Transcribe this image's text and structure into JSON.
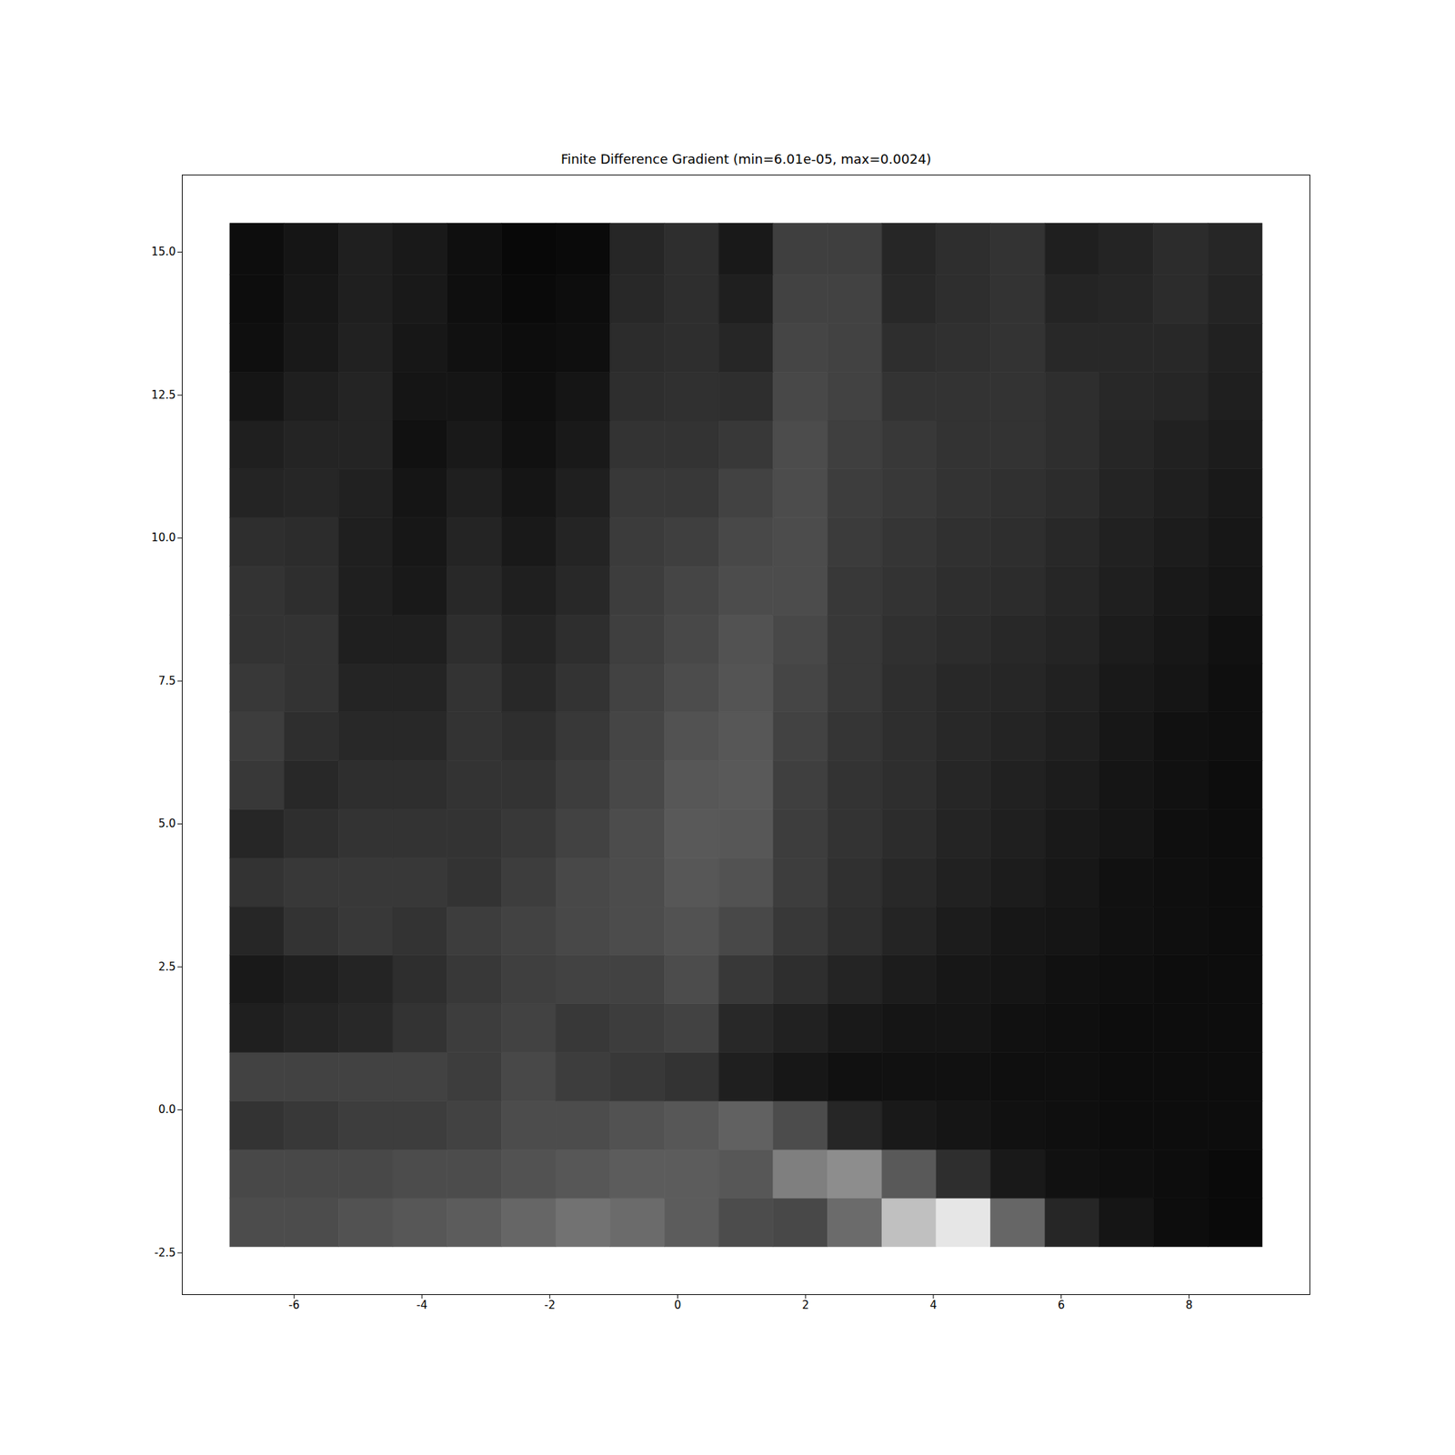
{
  "chart_data": {
    "type": "heatmap",
    "title": "Finite Difference Gradient (min=6.01e-05, max=0.0024)",
    "xlim": [
      -7.75,
      9.89
    ],
    "ylim": [
      -3.23,
      16.35
    ],
    "xticks": [
      -6,
      -4,
      -2,
      0,
      2,
      4,
      6,
      8
    ],
    "yticks": [
      -2.5,
      {
        "value": 0,
        "label": "0.0"
      },
      2.5,
      {
        "value": 5,
        "label": "5.0"
      },
      7.5,
      {
        "value": 10,
        "label": "10.0"
      },
      12.5,
      {
        "value": 15,
        "label": "15.0"
      }
    ],
    "zlim": [
      6.01e-05,
      0.0024
    ],
    "x_bins": [
      -7.0,
      -6.15,
      -5.3,
      -4.45,
      -3.6,
      -2.75,
      -1.9,
      -1.05,
      -0.2,
      0.65,
      1.5,
      2.35,
      3.2,
      4.05,
      4.9,
      5.75,
      6.6,
      7.45,
      8.3,
      9.15
    ],
    "y_bins": [
      -2.4,
      -1.55,
      -0.7,
      0.15,
      1.0,
      1.85,
      2.7,
      3.55,
      4.4,
      5.25,
      6.1,
      6.95,
      7.8,
      8.65,
      9.5,
      10.35,
      11.2,
      12.05,
      12.9,
      13.75,
      14.6,
      15.5
    ],
    "cells": [
      [
        0.00076,
        0.00076,
        0.00081,
        0.00086,
        0.0009,
        0.001,
        0.00111,
        0.00104,
        0.0009,
        0.00076,
        0.00072,
        0.00104,
        0.00182,
        0.00217,
        0.001,
        0.00041,
        0.00025,
        0.00018,
        0.00015
      ],
      [
        0.00072,
        0.00072,
        0.00072,
        0.00076,
        0.00076,
        0.00081,
        0.00086,
        0.0009,
        0.0009,
        0.00086,
        0.00123,
        0.00135,
        0.00088,
        0.00048,
        0.00029,
        0.00022,
        0.0002,
        0.00018,
        0.00015
      ],
      [
        0.00053,
        0.00057,
        0.00062,
        0.00062,
        0.00067,
        0.00076,
        0.00076,
        0.00081,
        0.00086,
        0.00095,
        0.00076,
        0.00041,
        0.00029,
        0.00025,
        0.00022,
        0.0002,
        0.00018,
        0.00018,
        0.00018
      ],
      [
        0.00067,
        0.00067,
        0.00067,
        0.00067,
        0.00062,
        0.00072,
        0.00062,
        0.00057,
        0.00053,
        0.00034,
        0.00027,
        0.00022,
        0.00022,
        0.00022,
        0.0002,
        0.0002,
        0.00018,
        0.00018,
        0.00018
      ],
      [
        0.00034,
        0.00039,
        0.00043,
        0.00053,
        0.00062,
        0.00067,
        0.00057,
        0.00062,
        0.00067,
        0.00043,
        0.00036,
        0.00029,
        0.00025,
        0.00025,
        0.00022,
        0.0002,
        0.00018,
        0.00018,
        0.00018
      ],
      [
        0.00029,
        0.00034,
        0.00039,
        0.00048,
        0.00057,
        0.00064,
        0.00067,
        0.00067,
        0.00076,
        0.00057,
        0.00048,
        0.00039,
        0.00032,
        0.00027,
        0.00025,
        0.00022,
        0.0002,
        0.00018,
        0.00018
      ],
      [
        0.00041,
        0.00053,
        0.00057,
        0.00053,
        0.00062,
        0.00067,
        0.00072,
        0.00076,
        0.00081,
        0.00072,
        0.00057,
        0.00048,
        0.00039,
        0.00032,
        0.00027,
        0.00025,
        0.00022,
        0.0002,
        0.00018
      ],
      [
        0.00053,
        0.00057,
        0.00057,
        0.00057,
        0.00053,
        0.00062,
        0.00072,
        0.00076,
        0.00086,
        0.00081,
        0.00062,
        0.0005,
        0.00043,
        0.00036,
        0.00032,
        0.00027,
        0.00022,
        0.0002,
        0.00018
      ],
      [
        0.00041,
        0.00048,
        0.00053,
        0.00053,
        0.00053,
        0.00057,
        0.00067,
        0.00076,
        0.00088,
        0.00086,
        0.00062,
        0.00053,
        0.00046,
        0.00039,
        0.00034,
        0.00029,
        0.00025,
        0.0002,
        0.00018
      ],
      [
        0.00057,
        0.00043,
        0.00048,
        0.00048,
        0.00053,
        0.00053,
        0.00062,
        0.00072,
        0.00086,
        0.00088,
        0.00064,
        0.00053,
        0.00048,
        0.00041,
        0.00036,
        0.00032,
        0.00025,
        0.00022,
        0.00018
      ],
      [
        0.00062,
        0.00048,
        0.00043,
        0.00043,
        0.00053,
        0.00048,
        0.00057,
        0.00069,
        0.00081,
        0.00086,
        0.00067,
        0.00055,
        0.00048,
        0.00043,
        0.00039,
        0.00034,
        0.00027,
        0.00022,
        0.0002
      ],
      [
        0.00057,
        0.00053,
        0.00039,
        0.00039,
        0.00053,
        0.00043,
        0.00053,
        0.00067,
        0.00076,
        0.00083,
        0.00069,
        0.00057,
        0.00048,
        0.00043,
        0.00041,
        0.00036,
        0.00029,
        0.00025,
        0.0002
      ],
      [
        0.00053,
        0.00053,
        0.00034,
        0.00034,
        0.00048,
        0.00039,
        0.00048,
        0.00064,
        0.00072,
        0.00081,
        0.00072,
        0.00057,
        0.0005,
        0.00046,
        0.00043,
        0.00039,
        0.00032,
        0.00027,
        0.00022
      ],
      [
        0.00053,
        0.00048,
        0.00034,
        0.00029,
        0.00043,
        0.00034,
        0.00043,
        0.00062,
        0.00069,
        0.00076,
        0.00076,
        0.00057,
        0.00053,
        0.00048,
        0.00046,
        0.00041,
        0.00034,
        0.00029,
        0.00025
      ],
      [
        0.00048,
        0.00046,
        0.00034,
        0.00027,
        0.00039,
        0.00029,
        0.00039,
        0.0006,
        0.00064,
        0.00072,
        0.00076,
        0.0006,
        0.00055,
        0.0005,
        0.00048,
        0.00043,
        0.00036,
        0.00032,
        0.00027
      ],
      [
        0.00039,
        0.00041,
        0.00036,
        0.00025,
        0.00034,
        0.00025,
        0.00034,
        0.00057,
        0.00057,
        0.00067,
        0.00076,
        0.00062,
        0.00057,
        0.00053,
        0.0005,
        0.00046,
        0.00039,
        0.00034,
        0.00029
      ],
      [
        0.00034,
        0.00039,
        0.00039,
        0.00022,
        0.00029,
        0.00022,
        0.00029,
        0.00053,
        0.00053,
        0.00057,
        0.00076,
        0.00064,
        0.00057,
        0.00053,
        0.00053,
        0.00048,
        0.00041,
        0.00036,
        0.00032
      ],
      [
        0.00025,
        0.00034,
        0.00039,
        0.00025,
        0.00025,
        0.0002,
        0.00025,
        0.00048,
        0.0005,
        0.00048,
        0.00072,
        0.00067,
        0.00053,
        0.00053,
        0.00053,
        0.00048,
        0.00043,
        0.00041,
        0.00034
      ],
      [
        0.0002,
        0.00029,
        0.00036,
        0.00027,
        0.00022,
        0.00018,
        0.0002,
        0.00046,
        0.00048,
        0.00041,
        0.00069,
        0.00067,
        0.00048,
        0.0005,
        0.00053,
        0.00043,
        0.00043,
        0.00043,
        0.00036
      ],
      [
        0.00018,
        0.00027,
        0.00034,
        0.00029,
        0.0002,
        0.00015,
        0.00018,
        0.00043,
        0.00048,
        0.00034,
        0.00067,
        0.00067,
        0.00043,
        0.00048,
        0.00053,
        0.00039,
        0.00041,
        0.00046,
        0.00039
      ],
      [
        0.00018,
        0.00025,
        0.00034,
        0.00029,
        0.0002,
        0.00013,
        0.00015,
        0.00041,
        0.00048,
        0.00029,
        0.00064,
        0.00064,
        0.00041,
        0.00048,
        0.00053,
        0.00034,
        0.00039,
        0.00046,
        0.00041
      ]
    ]
  }
}
